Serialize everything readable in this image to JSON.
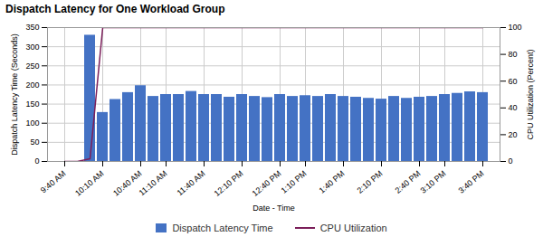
{
  "chart_data": {
    "type": "bar",
    "title": "Dispatch Latency for One Workload Group",
    "xlabel": "Date - Time",
    "ylabel": "Dispatch Latency Time (Seconds)",
    "y2label": "CPU Utilization (Percent)",
    "categories": [
      "9:40 AM",
      null,
      null,
      "10:10 AM",
      null,
      null,
      "10:40 AM",
      null,
      "11:10 AM",
      null,
      null,
      "11:40 AM",
      null,
      null,
      "12:10 PM",
      null,
      null,
      "12:40 PM",
      null,
      "1:10 PM",
      null,
      null,
      "1:40 PM",
      null,
      null,
      "2:10 PM",
      null,
      null,
      "2:40 PM",
      null,
      "3:10 PM",
      null,
      null,
      "3:40 PM"
    ],
    "series": [
      {
        "name": "Dispatch Latency Time",
        "type": "bar",
        "color": "#4472C4",
        "values": [
          0,
          0,
          330,
          128,
          162,
          180,
          198,
          170,
          175,
          175,
          183,
          175,
          175,
          168,
          175,
          170,
          167,
          175,
          170,
          172,
          170,
          175,
          170,
          168,
          165,
          163,
          170,
          165,
          168,
          170,
          175,
          178,
          182,
          180
        ]
      },
      {
        "name": "CPU Utilization",
        "type": "line",
        "color": "#7B1F5A",
        "axis": "y2",
        "values": [
          0,
          0,
          2,
          100,
          100,
          100,
          100,
          100,
          100,
          100,
          100,
          100,
          100,
          100,
          100,
          100,
          100,
          100,
          100,
          100,
          100,
          100,
          100,
          100,
          100,
          100,
          100,
          100,
          100,
          100,
          100,
          100,
          100,
          100
        ]
      }
    ],
    "ylim": [
      0,
      350
    ],
    "yticks": [
      0,
      50,
      100,
      150,
      200,
      250,
      300,
      350
    ],
    "y2lim": [
      0,
      100
    ],
    "y2ticks": [
      0,
      20,
      40,
      60,
      80,
      100
    ],
    "grid": true,
    "legend": "bottom"
  }
}
